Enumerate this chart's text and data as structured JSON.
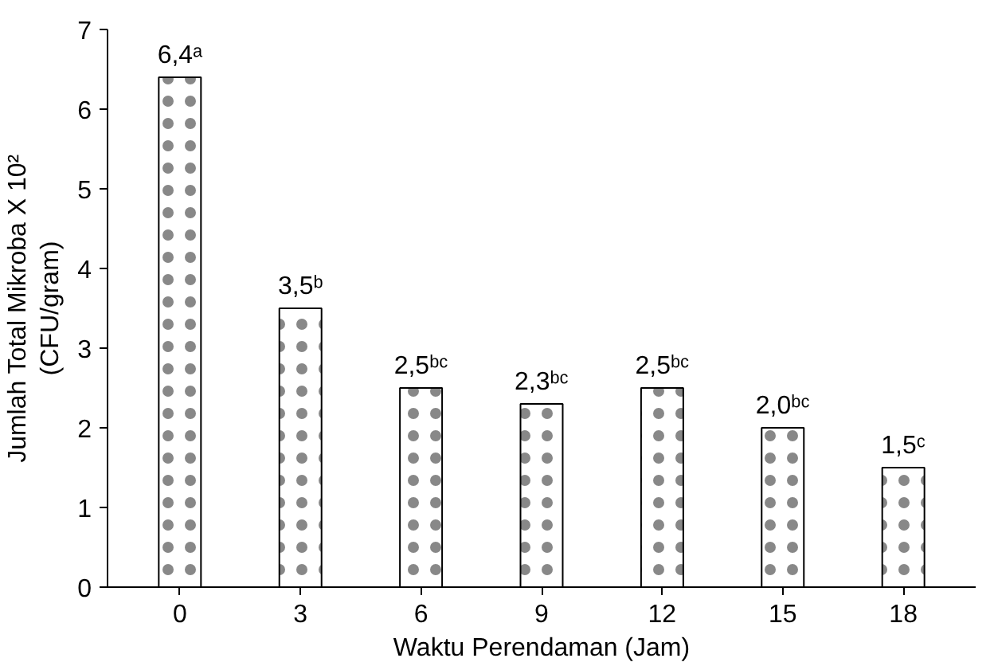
{
  "chart_data": {
    "type": "bar",
    "xlabel": "Waktu Perendaman (Jam)",
    "ylabel": "Jumlah Total Mikroba X 10²\n(CFU/gram)",
    "categories": [
      "0",
      "3",
      "6",
      "9",
      "12",
      "15",
      "18"
    ],
    "values": [
      6.4,
      3.5,
      2.5,
      2.3,
      2.5,
      2.0,
      1.5
    ],
    "value_labels": [
      "6,4ᵃ",
      "3,5ᵇ",
      "2,5ᵇᶜ",
      "2,3ᵇᶜ",
      "2,5ᵇᶜ",
      "2,0ᵇᶜ",
      "1,5ᶜ"
    ],
    "color": "#ffffff",
    "ylim": [
      0,
      7
    ],
    "yticks": [
      0,
      1,
      2,
      3,
      4,
      5,
      6,
      7
    ],
    "grid": false
  }
}
